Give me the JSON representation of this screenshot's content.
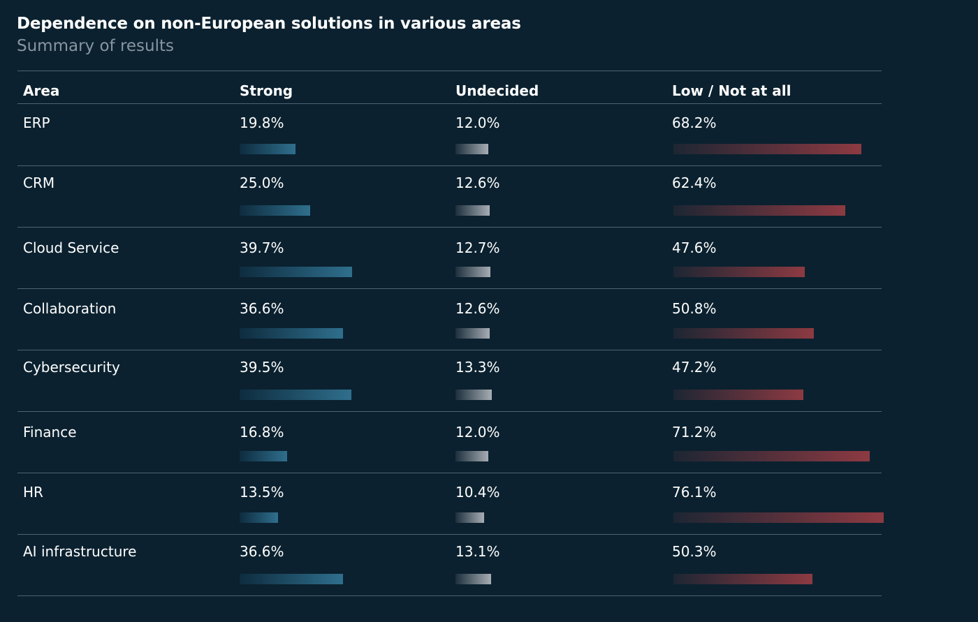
{
  "title": "Dependence on non-European solutions in various areas",
  "subtitle": "Summary of results",
  "headers": {
    "area": "Area",
    "strong": "Strong",
    "undecided": "Undecided",
    "low": "Low / Not at all"
  },
  "colors": {
    "background": "#0b212f",
    "strong_bar": "#2f6f8d",
    "undecided_bar": "#a7adb4",
    "low_bar": "#8d3a42"
  },
  "chart_data": {
    "type": "table",
    "title": "Dependence on non-European solutions in various areas",
    "subtitle": "Summary of results",
    "columns": [
      "Area",
      "Strong",
      "Undecided",
      "Low / Not at all"
    ],
    "categories": [
      "ERP",
      "CRM",
      "Cloud Service",
      "Collaboration",
      "Cybersecurity",
      "Finance",
      "HR",
      "AI infrastructure"
    ],
    "series": [
      {
        "name": "Strong",
        "values": [
          19.8,
          25.0,
          39.7,
          36.6,
          39.5,
          16.8,
          13.5,
          36.6
        ]
      },
      {
        "name": "Undecided",
        "values": [
          12.0,
          12.6,
          12.7,
          12.6,
          13.3,
          12.0,
          10.4,
          13.1
        ]
      },
      {
        "name": "Low / Not at all",
        "values": [
          68.2,
          62.4,
          47.6,
          50.8,
          47.2,
          71.2,
          76.1,
          50.3
        ]
      }
    ],
    "rows": [
      {
        "area": "ERP",
        "strong": 19.8,
        "strong_label": "19.8%",
        "undecided": 12.0,
        "undecided_label": "12.0%",
        "low": 68.2,
        "low_label": "68.2%"
      },
      {
        "area": "CRM",
        "strong": 25.0,
        "strong_label": "25.0%",
        "undecided": 12.6,
        "undecided_label": "12.6%",
        "low": 62.4,
        "low_label": "62.4%"
      },
      {
        "area": "Cloud Service",
        "strong": 39.7,
        "strong_label": "39.7%",
        "undecided": 12.7,
        "undecided_label": "12.7%",
        "low": 47.6,
        "low_label": "47.6%"
      },
      {
        "area": "Collaboration",
        "strong": 36.6,
        "strong_label": "36.6%",
        "undecided": 12.6,
        "undecided_label": "12.6%",
        "low": 50.8,
        "low_label": "50.8%"
      },
      {
        "area": "Cybersecurity",
        "strong": 39.5,
        "strong_label": "39.5%",
        "undecided": 13.3,
        "undecided_label": "13.3%",
        "low": 47.2,
        "low_label": "47.2%"
      },
      {
        "area": "Finance",
        "strong": 16.8,
        "strong_label": "16.8%",
        "undecided": 12.0,
        "undecided_label": "12.0%",
        "low": 71.2,
        "low_label": "71.2%"
      },
      {
        "area": "HR",
        "strong": 13.5,
        "strong_label": "13.5%",
        "undecided": 10.4,
        "undecided_label": "10.4%",
        "low": 76.1,
        "low_label": "76.1%"
      },
      {
        "area": "AI infrastructure",
        "strong": 36.6,
        "strong_label": "36.6%",
        "undecided": 13.1,
        "undecided_label": "13.1%",
        "low": 50.3,
        "low_label": "50.3%"
      }
    ]
  }
}
